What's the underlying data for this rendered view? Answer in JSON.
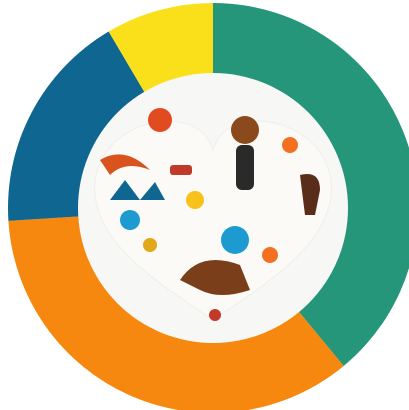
{
  "chart_data": {
    "type": "donut",
    "values": [
      39,
      35,
      17.5,
      8.5
    ],
    "colors": [
      "#25967a",
      "#f7880f",
      "#0f6690",
      "#f9e01a"
    ]
  }
}
